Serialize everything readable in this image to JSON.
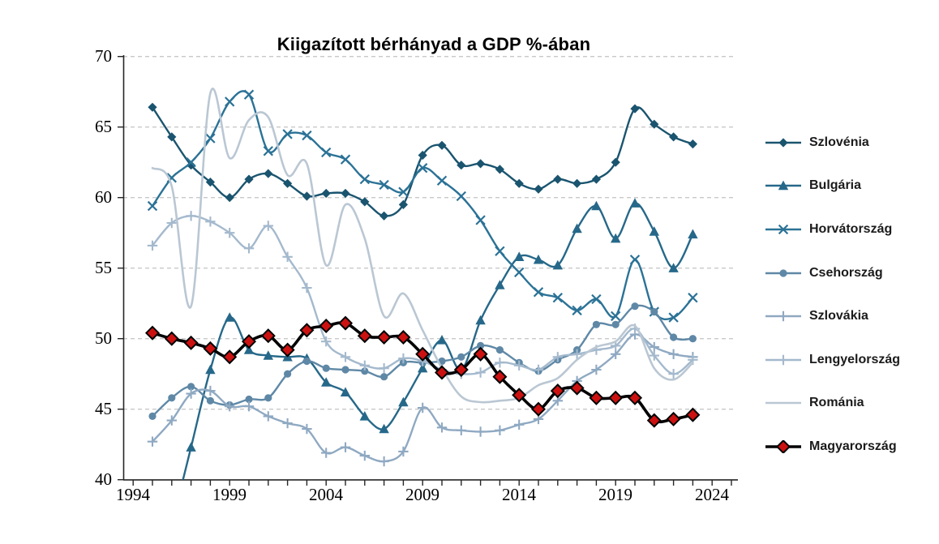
{
  "title": "Kiigazított bérhányad a GDP %-ában",
  "chart_data": {
    "type": "line",
    "title": "Kiigazított bérhányad a GDP %-ában",
    "xlabel": "",
    "ylabel": "",
    "x": [
      1995,
      1996,
      1997,
      1998,
      1999,
      2000,
      2001,
      2002,
      2003,
      2004,
      2005,
      2006,
      2007,
      2008,
      2009,
      2010,
      2011,
      2012,
      2013,
      2014,
      2015,
      2016,
      2017,
      2018,
      2019,
      2020,
      2021,
      2022,
      2023
    ],
    "xlim": [
      1994,
      2025
    ],
    "ylim": [
      40,
      70
    ],
    "ytick_labels": [
      "40",
      "45",
      "50",
      "55",
      "60",
      "65",
      "70"
    ],
    "xtick_labels": [
      "1994",
      "1999",
      "2004",
      "2009",
      "2014",
      "2019",
      "2024"
    ],
    "grid": "horizontal-dashed",
    "grid_color": "#c9c9c9",
    "axis_color": "#262626",
    "legend_position": "right",
    "series": [
      {
        "name": "Szlovénia",
        "color": "#1a546f",
        "marker": "diamond",
        "line_width": 2.4,
        "values": [
          66.4,
          64.3,
          62.3,
          61.1,
          60.0,
          61.3,
          61.7,
          61.0,
          60.1,
          60.3,
          60.3,
          59.7,
          58.7,
          59.5,
          63.0,
          63.7,
          62.3,
          62.4,
          62.0,
          61.0,
          60.6,
          61.3,
          61.0,
          61.3,
          62.5,
          66.3,
          65.2,
          64.3,
          63.8
        ]
      },
      {
        "name": "Bulgária",
        "color": "#266889",
        "marker": "triangle",
        "line_width": 2.4,
        "values": [
          null,
          36.8,
          42.3,
          47.8,
          51.5,
          49.2,
          48.8,
          48.7,
          48.6,
          46.9,
          46.2,
          44.5,
          43.6,
          45.5,
          47.9,
          49.9,
          47.8,
          51.3,
          53.8,
          55.8,
          55.6,
          55.2,
          57.8,
          59.4,
          57.1,
          59.6,
          57.6,
          55.0,
          57.4
        ]
      },
      {
        "name": "Horvátország",
        "color": "#2b7296",
        "marker": "x",
        "line_width": 2.4,
        "values": [
          59.4,
          61.4,
          62.5,
          64.2,
          66.8,
          67.3,
          63.3,
          64.5,
          64.4,
          63.2,
          62.7,
          61.3,
          60.9,
          60.4,
          62.1,
          61.2,
          60.1,
          58.4,
          56.2,
          54.7,
          53.3,
          52.9,
          52.0,
          52.8,
          51.6,
          55.6,
          51.9,
          51.5,
          52.9
        ]
      },
      {
        "name": "Csehország",
        "color": "#5f88a6",
        "marker": "circle",
        "line_width": 2.4,
        "values": [
          44.5,
          45.8,
          46.6,
          45.6,
          45.3,
          45.7,
          45.8,
          47.5,
          48.4,
          47.9,
          47.8,
          47.7,
          47.3,
          48.3,
          48.3,
          48.4,
          48.7,
          49.5,
          49.2,
          48.3,
          47.7,
          48.5,
          49.2,
          51.0,
          51.0,
          52.3,
          51.9,
          50.1,
          50.0
        ]
      },
      {
        "name": "Szlovákia",
        "color": "#8fa9c2",
        "marker": "plus",
        "line_width": 2.4,
        "values": [
          42.7,
          44.2,
          46.1,
          46.3,
          45.2,
          45.2,
          44.5,
          44.0,
          43.6,
          41.9,
          42.3,
          41.7,
          41.3,
          42.0,
          45.1,
          43.7,
          43.5,
          43.4,
          43.5,
          43.9,
          44.3,
          45.6,
          47.0,
          47.8,
          48.9,
          50.3,
          49.4,
          48.9,
          48.7
        ]
      },
      {
        "name": "Lengyelország",
        "color": "#a4b9cd",
        "marker": "plus",
        "line_width": 2.4,
        "values": [
          56.6,
          58.2,
          58.7,
          58.3,
          57.5,
          56.4,
          58.0,
          55.8,
          53.6,
          49.8,
          48.7,
          48.1,
          47.9,
          48.6,
          48.4,
          47.8,
          47.5,
          47.6,
          48.3,
          48.1,
          47.8,
          48.7,
          48.9,
          49.2,
          49.5,
          50.7,
          48.8,
          47.5,
          48.5
        ]
      },
      {
        "name": "Románia",
        "color": "#bac7d3",
        "marker": "none",
        "line_width": 2.6,
        "values": [
          62.1,
          60.8,
          52.3,
          67.4,
          62.8,
          65.5,
          65.7,
          61.6,
          62.4,
          55.2,
          59.5,
          57.1,
          51.6,
          53.2,
          50.6,
          47.9,
          45.9,
          45.5,
          45.6,
          45.8,
          46.7,
          47.2,
          48.5,
          49.4,
          49.8,
          50.9,
          47.9,
          47.1,
          48.3
        ]
      },
      {
        "name": "Magyarország",
        "color": "#000000",
        "marker": "diamond-red",
        "marker_fill": "#cc1111",
        "line_width": 3.6,
        "values": [
          50.4,
          50.0,
          49.7,
          49.3,
          48.7,
          49.8,
          50.2,
          49.2,
          50.6,
          50.9,
          51.1,
          50.2,
          50.1,
          50.1,
          48.9,
          47.6,
          47.8,
          48.9,
          47.3,
          46.0,
          45.0,
          46.3,
          46.5,
          45.8,
          45.8,
          45.8,
          44.2,
          44.3,
          44.6
        ]
      }
    ]
  }
}
